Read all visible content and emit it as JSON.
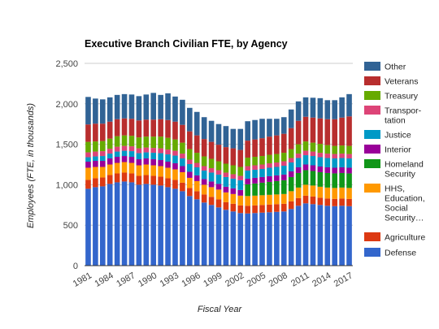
{
  "chart_data": {
    "type": "bar",
    "stacked": true,
    "title": "Executive Branch Civilian FTE, by Agency",
    "xlabel": "Fiscal Year",
    "ylabel": "Employees (FTE, in thousands)",
    "ylim": [
      0,
      2500
    ],
    "y_ticks": [
      0,
      500,
      1000,
      1500,
      2000,
      2500
    ],
    "y_tick_labels": [
      "0",
      "500",
      "1,000",
      "1,500",
      "2,000",
      "2,500"
    ],
    "x_tick_labels": [
      "1981",
      "1984",
      "1987",
      "1990",
      "1993",
      "1996",
      "1999",
      "2002",
      "2005",
      "2008",
      "2011",
      "2014",
      "2017"
    ],
    "grid": true,
    "legend_position": "right",
    "categories": [
      "1981",
      "1982",
      "1983",
      "1984",
      "1985",
      "1986",
      "1987",
      "1988",
      "1989",
      "1990",
      "1991",
      "1992",
      "1993",
      "1994",
      "1995",
      "1996",
      "1997",
      "1998",
      "1999",
      "2000",
      "2001",
      "2002",
      "2003",
      "2004",
      "2005",
      "2006",
      "2007",
      "2008",
      "2009",
      "2010",
      "2011",
      "2012",
      "2013",
      "2014",
      "2015",
      "2016",
      "2017"
    ],
    "series": [
      {
        "name": "Defense",
        "color": "#3366cc",
        "values": [
          950,
          970,
          980,
          1010,
          1030,
          1040,
          1030,
          1000,
          1010,
          1000,
          990,
          970,
          950,
          920,
          860,
          820,
          780,
          750,
          720,
          690,
          670,
          650,
          645,
          650,
          655,
          660,
          665,
          670,
          700,
          740,
          770,
          760,
          750,
          740,
          735,
          740,
          735
        ]
      },
      {
        "name": "Agriculture",
        "color": "#dc3912",
        "values": [
          110,
          110,
          110,
          110,
          110,
          110,
          110,
          110,
          110,
          110,
          110,
          110,
          110,
          105,
          100,
          100,
          100,
          100,
          100,
          95,
          95,
          95,
          95,
          95,
          95,
          95,
          95,
          95,
          95,
          95,
          95,
          95,
          90,
          90,
          90,
          90,
          90
        ]
      },
      {
        "name": "HHS, Education, Social Security…",
        "color": "#ff9900",
        "values": [
          150,
          140,
          130,
          130,
          130,
          130,
          130,
          130,
          130,
          130,
          130,
          130,
          130,
          130,
          125,
          125,
          120,
          120,
          120,
          120,
          120,
          120,
          120,
          120,
          120,
          120,
          120,
          120,
          125,
          130,
          135,
          135,
          135,
          135,
          135,
          135,
          135
        ]
      },
      {
        "name": "Homeland Security",
        "color": "#109618",
        "values": [
          0,
          0,
          0,
          0,
          0,
          0,
          0,
          0,
          0,
          0,
          0,
          0,
          0,
          0,
          0,
          0,
          0,
          0,
          0,
          0,
          0,
          0,
          145,
          150,
          155,
          160,
          165,
          170,
          175,
          180,
          180,
          180,
          180,
          180,
          180,
          180,
          180
        ]
      },
      {
        "name": "Interior",
        "color": "#990099",
        "values": [
          75,
          75,
          75,
          75,
          75,
          75,
          75,
          75,
          75,
          75,
          75,
          75,
          75,
          75,
          75,
          70,
          70,
          70,
          70,
          70,
          70,
          70,
          70,
          70,
          70,
          70,
          70,
          70,
          70,
          70,
          70,
          70,
          70,
          70,
          70,
          70,
          70
        ]
      },
      {
        "name": "Justice",
        "color": "#0099c6",
        "values": [
          55,
          55,
          60,
          60,
          65,
          65,
          70,
          75,
          75,
          80,
          85,
          90,
          95,
          95,
          95,
          100,
          105,
          110,
          115,
          120,
          120,
          120,
          100,
          100,
          100,
          105,
          105,
          110,
          110,
          115,
          115,
          115,
          115,
          115,
          115,
          115,
          115
        ]
      },
      {
        "name": "Transportation",
        "color": "#dd4477",
        "values": [
          60,
          60,
          60,
          60,
          60,
          60,
          60,
          60,
          60,
          60,
          60,
          60,
          60,
          60,
          55,
          55,
          55,
          55,
          55,
          55,
          55,
          55,
          55,
          55,
          55,
          55,
          55,
          55,
          55,
          55,
          55,
          55,
          55,
          55,
          55,
          55,
          55
        ]
      },
      {
        "name": "Treasury",
        "color": "#66aa00",
        "values": [
          130,
          125,
          125,
          125,
          130,
          130,
          130,
          135,
          135,
          140,
          145,
          145,
          140,
          135,
          130,
          125,
          120,
          115,
          110,
          110,
          110,
          110,
          105,
          105,
          105,
          105,
          105,
          105,
          110,
          115,
          115,
          110,
          110,
          105,
          100,
          100,
          100
        ]
      },
      {
        "name": "Veterans",
        "color": "#b82e2e",
        "values": [
          215,
          220,
          215,
          210,
          210,
          210,
          210,
          210,
          210,
          210,
          215,
          220,
          220,
          220,
          220,
          215,
          215,
          210,
          205,
          205,
          210,
          210,
          210,
          215,
          220,
          225,
          230,
          235,
          260,
          290,
          305,
          310,
          315,
          320,
          330,
          345,
          365
        ]
      },
      {
        "name": "Other",
        "color": "#316395",
        "values": [
          340,
          310,
          300,
          300,
          300,
          300,
          300,
          300,
          310,
          330,
          300,
          330,
          310,
          310,
          290,
          290,
          270,
          260,
          255,
          260,
          240,
          260,
          240,
          240,
          240,
          220,
          205,
          205,
          230,
          240,
          240,
          245,
          250,
          235,
          235,
          250,
          275
        ]
      }
    ],
    "legend": [
      {
        "label": "Other",
        "color": "#316395"
      },
      {
        "label": "Veterans",
        "color": "#b82e2e"
      },
      {
        "label": "Treasury",
        "color": "#66aa00"
      },
      {
        "label": "Transpor-",
        "label2": "tation",
        "color": "#dd4477"
      },
      {
        "label": "Justice",
        "color": "#0099c6"
      },
      {
        "label": "Interior",
        "color": "#990099"
      },
      {
        "label": "Homeland",
        "label2": "Security",
        "color": "#109618"
      },
      {
        "label": "HHS,",
        "label2": "Education,",
        "label3": "Social",
        "label4": "Security…",
        "color": "#ff9900"
      },
      {
        "label": "Agriculture",
        "color": "#dc3912"
      },
      {
        "label": "Defense",
        "color": "#3366cc"
      }
    ],
    "gridline_color": "#cccccc",
    "axis_line_color": "#333333"
  }
}
